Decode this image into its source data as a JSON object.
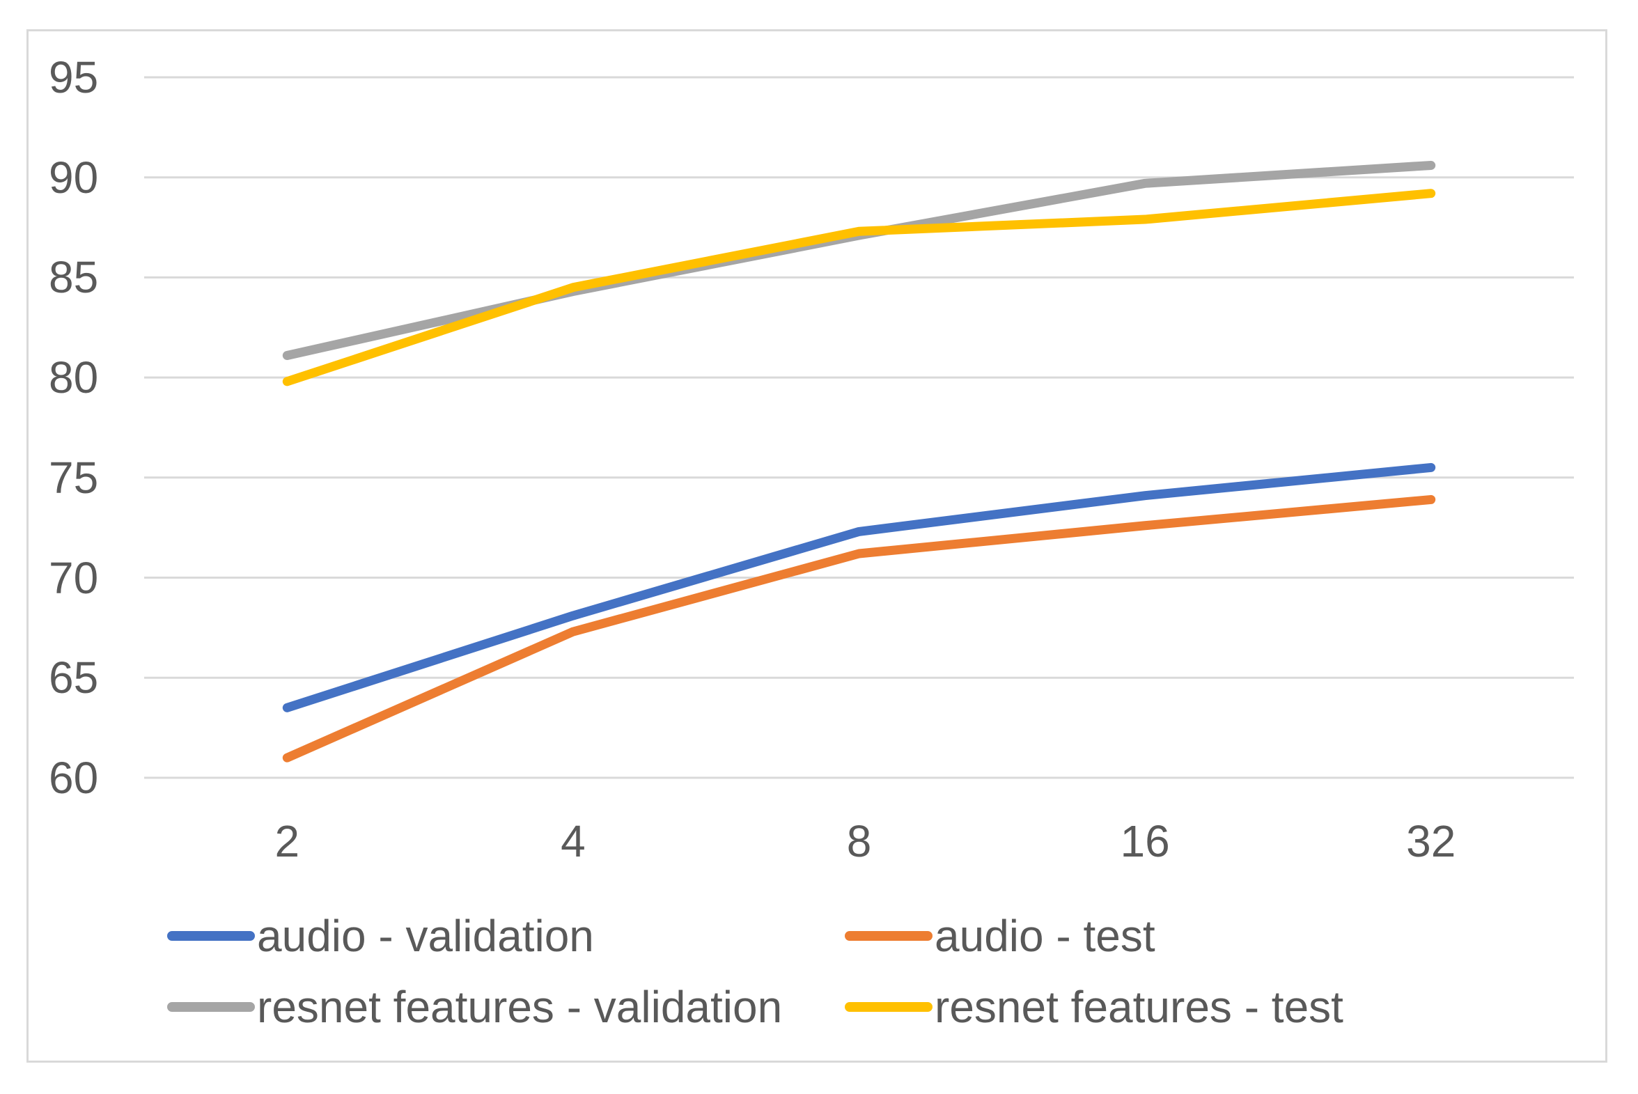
{
  "chart_data": {
    "type": "line",
    "title": "",
    "xlabel": "",
    "ylabel": "",
    "categories": [
      "2",
      "4",
      "8",
      "16",
      "32"
    ],
    "series": [
      {
        "name": "audio - validation",
        "color": "#4472C4",
        "values": [
          63.5,
          68.1,
          72.3,
          74.1,
          75.5
        ]
      },
      {
        "name": "audio - test",
        "color": "#ED7D31",
        "values": [
          61.0,
          67.3,
          71.2,
          72.6,
          73.9
        ]
      },
      {
        "name": "resnet features - validation",
        "color": "#A5A5A5",
        "values": [
          81.1,
          84.3,
          87.1,
          89.7,
          90.6
        ]
      },
      {
        "name": "resnet features - test",
        "color": "#FFC000",
        "values": [
          79.8,
          84.5,
          87.3,
          87.9,
          89.2
        ]
      }
    ],
    "yticks": [
      95,
      90,
      85,
      80,
      75,
      70,
      65,
      60
    ],
    "ylim": [
      60,
      95
    ],
    "grid": true,
    "legend_position": "bottom"
  },
  "styles": {
    "grid_color": "#D9D9D9",
    "frame_border_color": "#D9D9D9",
    "axis_text_color": "#595959",
    "background": "#FFFFFF",
    "line_width": 13
  }
}
